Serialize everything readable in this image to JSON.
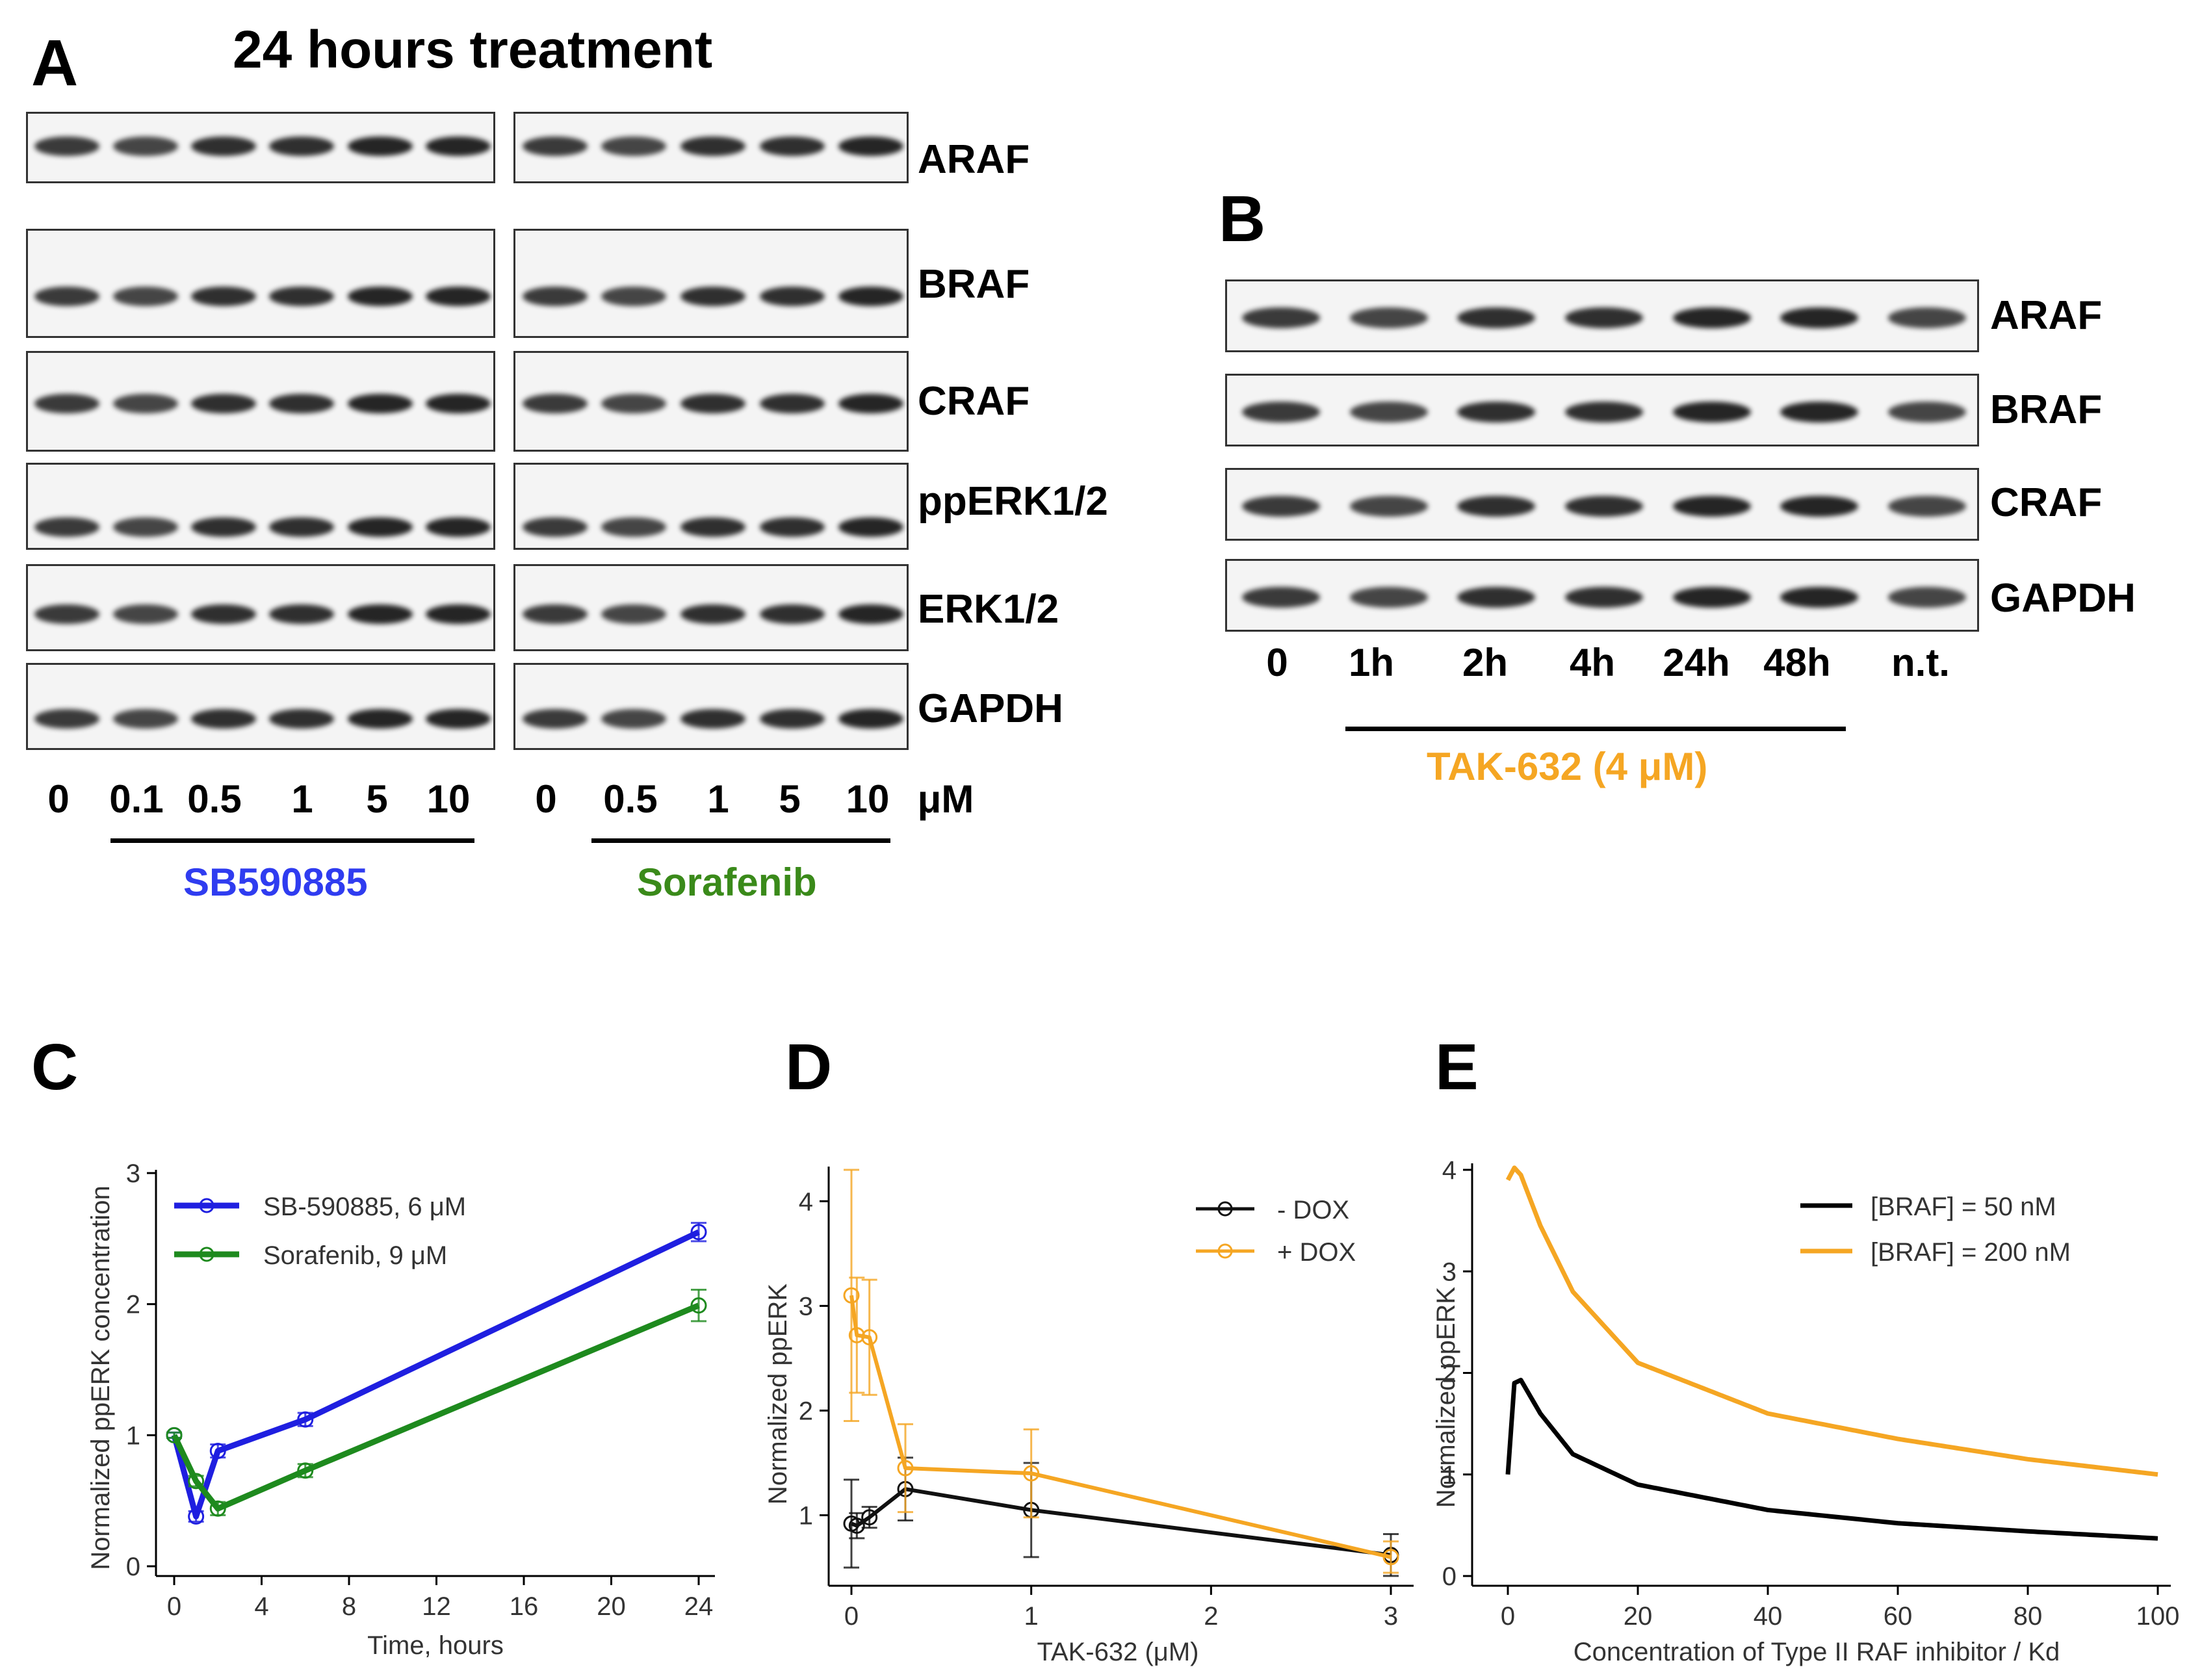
{
  "panel_a": {
    "letter": "A",
    "title": "24 hours treatment",
    "proteins": [
      "ARAF",
      "BRAF",
      "CRAF",
      "ppERK1/2",
      "ERK1/2",
      "GAPDH"
    ],
    "left_lanes": [
      "0",
      "0.1",
      "0.5",
      "1",
      "5",
      "10"
    ],
    "right_lanes": [
      "0",
      "0.5",
      "1",
      "5",
      "10"
    ],
    "unit": "μM",
    "drug_left": "SB590885",
    "drug_left_color": "#2f3cf0",
    "drug_right": "Sorafenib",
    "drug_right_color": "#3a8a1a"
  },
  "panel_b": {
    "letter": "B",
    "proteins": [
      "ARAF",
      "BRAF",
      "CRAF",
      "GAPDH"
    ],
    "lanes": [
      "0",
      "1h",
      "2h",
      "4h",
      "24h",
      "48h",
      "n.t."
    ],
    "drug": "TAK-632 (4 μM)",
    "drug_color": "#f5a623"
  },
  "panel_c": {
    "letter": "C"
  },
  "panel_d": {
    "letter": "D"
  },
  "panel_e": {
    "letter": "E"
  },
  "chart_data": [
    {
      "type": "line",
      "panel": "C",
      "xlabel": "Time, hours",
      "ylabel": "Normalized ppERK concentration",
      "xlim": [
        0,
        24
      ],
      "ylim": [
        0,
        3
      ],
      "xticks": [
        "0",
        "4",
        "8",
        "12",
        "16",
        "20",
        "24"
      ],
      "yticks": [
        "0",
        "1",
        "2",
        "3"
      ],
      "legend_position": "top-left",
      "series": [
        {
          "name": "SB-590885, 6 μM",
          "color": "#1f1fe0",
          "x": [
            0,
            1,
            2,
            6,
            24
          ],
          "y": [
            1.0,
            0.38,
            0.88,
            1.12,
            2.55
          ],
          "err": [
            0.02,
            0.04,
            0.05,
            0.05,
            0.07
          ]
        },
        {
          "name": "Sorafenib, 9 μM",
          "color": "#1e8a1e",
          "x": [
            0,
            1,
            2,
            6,
            24
          ],
          "y": [
            1.0,
            0.65,
            0.44,
            0.73,
            1.99
          ],
          "err": [
            0.02,
            0.04,
            0.05,
            0.05,
            0.12
          ]
        }
      ]
    },
    {
      "type": "line",
      "panel": "D",
      "xlabel": "TAK-632 (μM)",
      "ylabel": "Normalized ppERK",
      "xlim": [
        0,
        3
      ],
      "ylim": [
        0.5,
        4.3
      ],
      "xticks": [
        "0",
        "1",
        "2",
        "3"
      ],
      "yticks": [
        "1",
        "2",
        "3",
        "4"
      ],
      "legend_position": "top-right",
      "series": [
        {
          "name": "- DOX",
          "color": "#111111",
          "x": [
            0,
            0.03,
            0.1,
            0.3,
            1,
            3
          ],
          "y": [
            0.92,
            0.9,
            0.98,
            1.25,
            1.05,
            0.62
          ],
          "err": [
            0.42,
            0.12,
            0.1,
            0.3,
            0.45,
            0.2
          ]
        },
        {
          "name": "+ DOX",
          "color": "#f5a623",
          "x": [
            0,
            0.03,
            0.1,
            0.3,
            1,
            3
          ],
          "y": [
            3.1,
            2.72,
            2.7,
            1.45,
            1.4,
            0.6
          ],
          "err": [
            1.2,
            0.55,
            0.55,
            0.42,
            0.42,
            0.15
          ]
        }
      ]
    },
    {
      "type": "line",
      "panel": "E",
      "xlabel": "Concentration of Type II RAF inhibitor / Kd",
      "ylabel": "Normalized ppERK",
      "xlim": [
        0,
        100
      ],
      "ylim": [
        0,
        4
      ],
      "xticks": [
        "0",
        "20",
        "40",
        "60",
        "80",
        "100"
      ],
      "yticks": [
        "0",
        "1",
        "2",
        "3",
        "4"
      ],
      "legend_position": "top-right",
      "series": [
        {
          "name": "[BRAF] = 50 nM",
          "color": "#000000",
          "x": [
            0,
            1,
            2,
            5,
            10,
            20,
            40,
            60,
            80,
            100
          ],
          "y": [
            1.0,
            1.9,
            1.93,
            1.6,
            1.2,
            0.9,
            0.65,
            0.52,
            0.44,
            0.37
          ]
        },
        {
          "name": "[BRAF] = 200 nM",
          "color": "#f5a623",
          "x": [
            0,
            1,
            2,
            5,
            10,
            20,
            40,
            60,
            80,
            100
          ],
          "y": [
            3.9,
            4.02,
            3.95,
            3.45,
            2.8,
            2.1,
            1.6,
            1.35,
            1.15,
            1.0
          ]
        }
      ]
    }
  ]
}
